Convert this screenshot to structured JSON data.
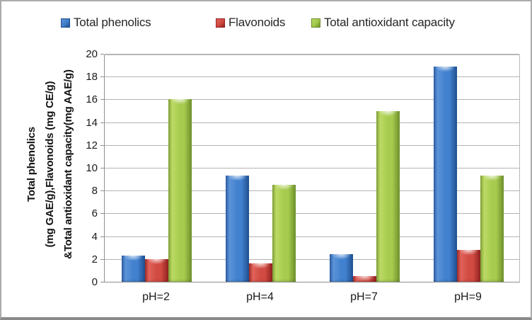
{
  "legend": [
    {
      "label": "Total phenolics"
    },
    {
      "label": "Flavonoids"
    },
    {
      "label": "Total antioxidant capacity"
    }
  ],
  "y_axis": {
    "title_lines": [
      "Total phenolics",
      "(mg GAE/g),Flavonoids (mg CE/g)",
      "&Total antioxidant capacity(mg AAE/g)"
    ]
  },
  "chart_data": {
    "type": "bar",
    "categories": [
      "pH=2",
      "pH=4",
      "pH=7",
      "pH=9"
    ],
    "series": [
      {
        "name": "Total phenolics",
        "values": [
          2.3,
          9.3,
          2.4,
          18.9
        ],
        "color": "#3f7dc9",
        "gradient": [
          "#2a5a9c",
          "#5b93d8",
          "#4181cf",
          "#1f4e8f"
        ]
      },
      {
        "name": "Flavonoids",
        "values": [
          2.0,
          1.6,
          0.5,
          2.8
        ],
        "color": "#d0493f",
        "gradient": [
          "#9c2823",
          "#e0625a",
          "#d24b42",
          "#8f211e"
        ]
      },
      {
        "name": "Total antioxidant capacity",
        "values": [
          16.0,
          8.5,
          15.0,
          9.3
        ],
        "color": "#a2c84a",
        "gradient": [
          "#7a9c33",
          "#bcd964",
          "#a6cb4e",
          "#6d8f2b"
        ]
      }
    ],
    "ylim": [
      0,
      20
    ],
    "ytick_step": 2,
    "grid": true,
    "legend_position": "top",
    "gridline_color": "#b3b3b3",
    "frame_border_color": "#ababab"
  }
}
